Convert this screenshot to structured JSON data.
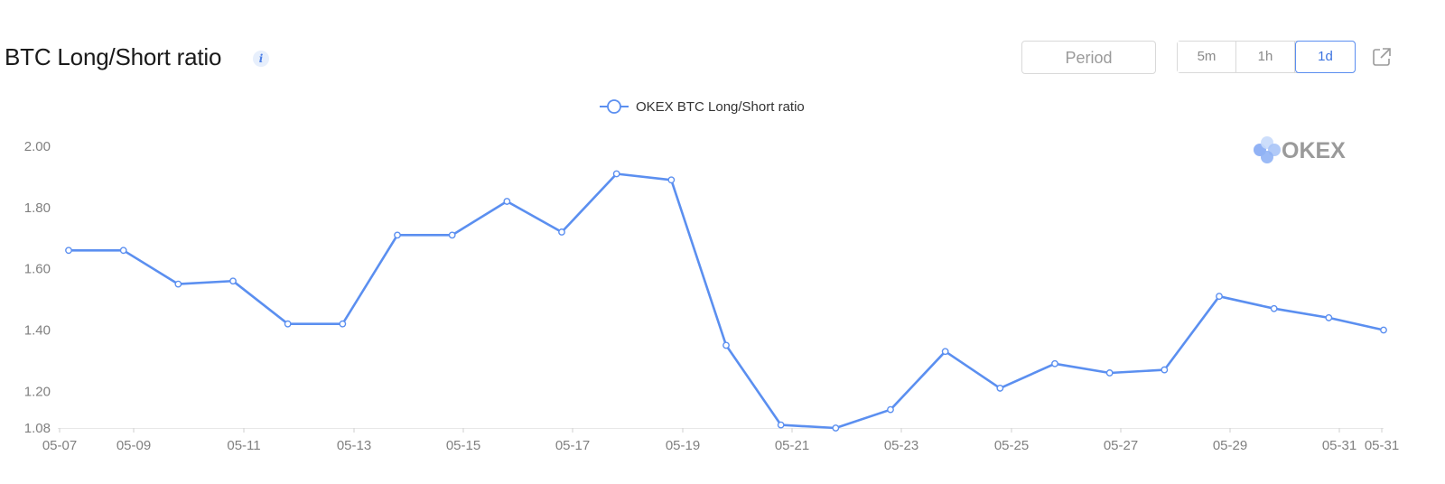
{
  "header": {
    "title": "BTC Long/Short ratio",
    "info_icon_glyph": "i",
    "period_placeholder": "Period",
    "intervals": [
      "5m",
      "1h",
      "1d"
    ],
    "active_interval": "1d",
    "share_icon": "share-icon"
  },
  "watermark": {
    "text": "OKEX"
  },
  "colors": {
    "series": "#5b8ff0",
    "accent": "#3d74e0",
    "axis_text": "#808080",
    "grid": "#e8e8e8"
  },
  "chart_data": {
    "type": "line",
    "legend": {
      "position": "top-center",
      "entries": [
        "OKEX BTC  Long/Short ratio"
      ]
    },
    "y_ticks": [
      "2.00",
      "1.80",
      "1.60",
      "1.40",
      "1.20",
      "1.08"
    ],
    "ylim": [
      1.08,
      2.0
    ],
    "x_tick_labels": [
      "05-07",
      "05-09",
      "05-11",
      "05-13",
      "05-15",
      "05-17",
      "05-19",
      "05-21",
      "05-23",
      "05-25",
      "05-27",
      "05-29",
      "05-31",
      "05-31"
    ],
    "grid": false,
    "series": [
      {
        "name": "OKEX BTC  Long/Short ratio",
        "x": [
          "05-07",
          "05-08",
          "05-09",
          "05-10",
          "05-11",
          "05-12",
          "05-13",
          "05-14",
          "05-15",
          "05-16",
          "05-17",
          "05-18",
          "05-19",
          "05-20",
          "05-21",
          "05-22",
          "05-23",
          "05-24",
          "05-25",
          "05-26",
          "05-27",
          "05-28",
          "05-29",
          "05-30",
          "05-31"
        ],
        "values": [
          1.66,
          1.66,
          1.55,
          1.56,
          1.42,
          1.42,
          1.71,
          1.71,
          1.82,
          1.72,
          1.91,
          1.89,
          1.35,
          1.09,
          1.08,
          1.14,
          1.33,
          1.21,
          1.29,
          1.26,
          1.27,
          1.51,
          1.47,
          1.44,
          1.4
        ]
      }
    ]
  }
}
